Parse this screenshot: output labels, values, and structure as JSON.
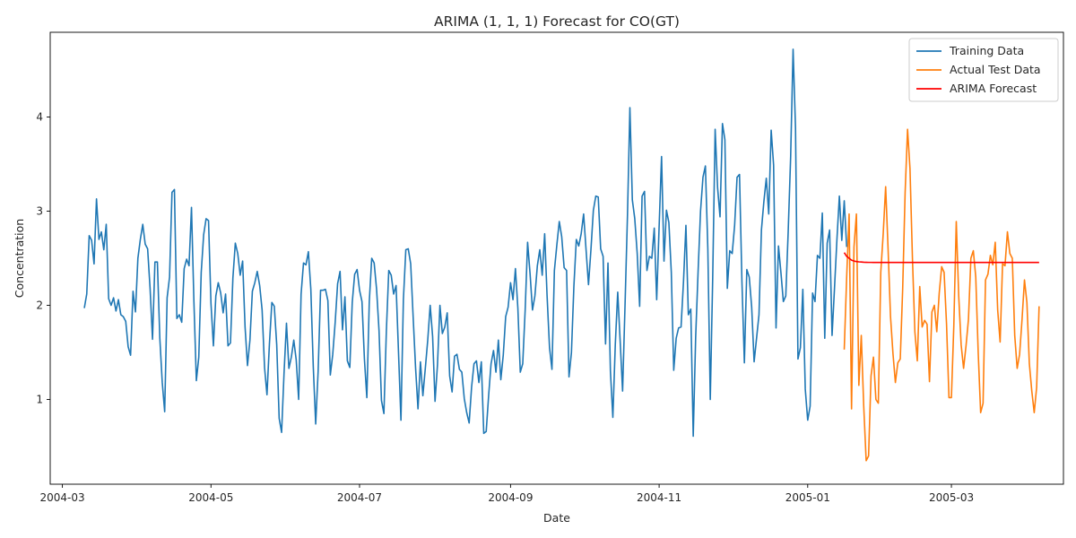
{
  "colors": {
    "training": "#1f77b4",
    "test": "#ff7f0e",
    "forecast": "#ff0000"
  },
  "chart_data": {
    "type": "line",
    "title": "ARIMA (1, 1, 1) Forecast for CO(GT)",
    "xlabel": "Date",
    "ylabel": "Concentration",
    "x_range": [
      "2004-02-25",
      "2005-04-16"
    ],
    "ylim": [
      0.1,
      4.9
    ],
    "x_ticks": [
      {
        "date": "2004-03-01",
        "label": "2004-03"
      },
      {
        "date": "2004-05-01",
        "label": "2004-05"
      },
      {
        "date": "2004-07-01",
        "label": "2004-07"
      },
      {
        "date": "2004-09-01",
        "label": "2004-09"
      },
      {
        "date": "2004-11-01",
        "label": "2004-11"
      },
      {
        "date": "2005-01-01",
        "label": "2005-01"
      },
      {
        "date": "2005-03-01",
        "label": "2005-03"
      }
    ],
    "y_ticks": [
      1,
      2,
      3,
      4
    ],
    "legend_position": "top-right",
    "series": [
      {
        "name": "Training Data",
        "color_key": "training",
        "start_date": "2004-03-10",
        "values": [
          1.97,
          2.12,
          2.74,
          2.69,
          2.44,
          3.13,
          2.7,
          2.78,
          2.59,
          2.86,
          2.07,
          2.0,
          2.08,
          1.94,
          2.06,
          1.9,
          1.88,
          1.83,
          1.56,
          1.47,
          2.15,
          1.93,
          2.5,
          2.7,
          2.86,
          2.65,
          2.6,
          2.18,
          1.64,
          2.46,
          2.46,
          1.65,
          1.18,
          0.87,
          2.08,
          2.3,
          3.2,
          3.23,
          1.86,
          1.9,
          1.82,
          2.39,
          2.49,
          2.42,
          3.04,
          2.04,
          1.2,
          1.45,
          2.35,
          2.75,
          2.92,
          2.9,
          2.02,
          1.57,
          2.1,
          2.24,
          2.13,
          1.92,
          2.12,
          1.57,
          1.6,
          2.29,
          2.66,
          2.55,
          2.32,
          2.47,
          1.77,
          1.36,
          1.63,
          2.15,
          2.24,
          2.36,
          2.21,
          1.95,
          1.34,
          1.05,
          1.59,
          2.03,
          1.99,
          1.58,
          0.8,
          0.65,
          1.28,
          1.81,
          1.33,
          1.45,
          1.63,
          1.42,
          1.0,
          2.12,
          2.45,
          2.43,
          2.57,
          2.17,
          1.35,
          0.74,
          1.3,
          2.16,
          2.16,
          2.17,
          2.05,
          1.26,
          1.48,
          1.82,
          2.23,
          2.36,
          1.74,
          2.09,
          1.41,
          1.34,
          2.03,
          2.33,
          2.38,
          2.16,
          2.04,
          1.43,
          1.02,
          2.04,
          2.5,
          2.45,
          2.17,
          1.73,
          0.99,
          0.85,
          1.72,
          2.37,
          2.32,
          2.12,
          2.21,
          1.5,
          0.78,
          2.06,
          2.59,
          2.6,
          2.44,
          1.88,
          1.34,
          0.9,
          1.4,
          1.04,
          1.33,
          1.63,
          2.0,
          1.67,
          0.98,
          1.37,
          2.0,
          1.7,
          1.77,
          1.92,
          1.25,
          1.08,
          1.46,
          1.48,
          1.32,
          1.29,
          1.01,
          0.86,
          0.75,
          1.13,
          1.38,
          1.41,
          1.18,
          1.4,
          0.64,
          0.66,
          1.04,
          1.38,
          1.52,
          1.29,
          1.63,
          1.21,
          1.47,
          1.88,
          1.98,
          2.24,
          2.06,
          2.39,
          1.97,
          1.29,
          1.38,
          1.95,
          2.67,
          2.34,
          1.95,
          2.1,
          2.42,
          2.59,
          2.32,
          2.76,
          2.1,
          1.55,
          1.32,
          2.37,
          2.64,
          2.89,
          2.73,
          2.4,
          2.37,
          1.24,
          1.5,
          2.2,
          2.7,
          2.63,
          2.76,
          2.97,
          2.59,
          2.22,
          2.59,
          3.01,
          3.16,
          3.15,
          2.6,
          2.52,
          1.59,
          2.45,
          1.3,
          0.81,
          1.58,
          2.14,
          1.62,
          1.09,
          2.0,
          2.95,
          4.1,
          3.12,
          2.92,
          2.55,
          1.99,
          3.16,
          3.21,
          2.37,
          2.52,
          2.5,
          2.82,
          2.06,
          2.84,
          3.58,
          2.47,
          3.01,
          2.88,
          2.35,
          1.31,
          1.65,
          1.76,
          1.77,
          2.25,
          2.85,
          1.9,
          1.96,
          0.61,
          1.66,
          2.36,
          3.0,
          3.36,
          3.48,
          2.6,
          1.0,
          2.3,
          3.87,
          3.25,
          2.94,
          3.93,
          3.76,
          2.18,
          2.58,
          2.55,
          2.85,
          3.36,
          3.39,
          2.25,
          1.39,
          2.38,
          2.3,
          1.98,
          1.4,
          1.65,
          1.9,
          2.8,
          3.1,
          3.35,
          2.97,
          3.86,
          3.49,
          1.76,
          2.63,
          2.35,
          2.04,
          2.1,
          2.79,
          3.58,
          4.72,
          3.88,
          1.43,
          1.55,
          2.17,
          1.11,
          0.78,
          0.93,
          2.13,
          2.04,
          2.53,
          2.5,
          2.98,
          1.65,
          2.66,
          2.8,
          1.68,
          2.18,
          2.7,
          3.16,
          2.69,
          3.11,
          2.62
        ]
      },
      {
        "name": "Actual Test Data",
        "color_key": "test",
        "start_date": "2005-01-16",
        "values": [
          1.53,
          2.3,
          2.97,
          0.9,
          2.62,
          2.97,
          1.15,
          1.68,
          0.93,
          0.35,
          0.4,
          1.25,
          1.45,
          1.0,
          0.96,
          2.35,
          2.76,
          3.26,
          2.6,
          1.88,
          1.49,
          1.18,
          1.39,
          1.43,
          2.18,
          3.2,
          3.87,
          3.45,
          2.5,
          1.72,
          1.41,
          2.2,
          1.77,
          1.84,
          1.8,
          1.19,
          1.93,
          2.0,
          1.72,
          2.13,
          2.41,
          2.35,
          1.8,
          1.02,
          1.02,
          1.79,
          2.89,
          2.1,
          1.58,
          1.33,
          1.57,
          1.85,
          2.5,
          2.58,
          2.3,
          1.5,
          0.86,
          0.96,
          2.27,
          2.33,
          2.53,
          2.43,
          2.67,
          1.95,
          1.61,
          2.44,
          2.42,
          2.78,
          2.55,
          2.5,
          1.68,
          1.33,
          1.48,
          1.85,
          2.27,
          2.03,
          1.38,
          1.09,
          0.86,
          1.13,
          1.99
        ]
      },
      {
        "name": "ARIMA Forecast",
        "color_key": "forecast",
        "start_date": "2005-01-16",
        "values": [
          2.56,
          2.52,
          2.5,
          2.48,
          2.47,
          2.465,
          2.462,
          2.46,
          2.458,
          2.457,
          2.456,
          2.456,
          2.455,
          2.455,
          2.455,
          2.455,
          2.455,
          2.455,
          2.455,
          2.455,
          2.455,
          2.455,
          2.455,
          2.455,
          2.455,
          2.455,
          2.455,
          2.455,
          2.455,
          2.455,
          2.455,
          2.455,
          2.455,
          2.455,
          2.455,
          2.455,
          2.455,
          2.455,
          2.455,
          2.455,
          2.455,
          2.455,
          2.455,
          2.455,
          2.455,
          2.455,
          2.455,
          2.455,
          2.455,
          2.455,
          2.455,
          2.455,
          2.455,
          2.455,
          2.455,
          2.455,
          2.455,
          2.455,
          2.455,
          2.455,
          2.455,
          2.455,
          2.455,
          2.455,
          2.455,
          2.455,
          2.455,
          2.455,
          2.455,
          2.455,
          2.455,
          2.455,
          2.455,
          2.455,
          2.455,
          2.455,
          2.455,
          2.455,
          2.455,
          2.455,
          2.455
        ]
      }
    ]
  }
}
